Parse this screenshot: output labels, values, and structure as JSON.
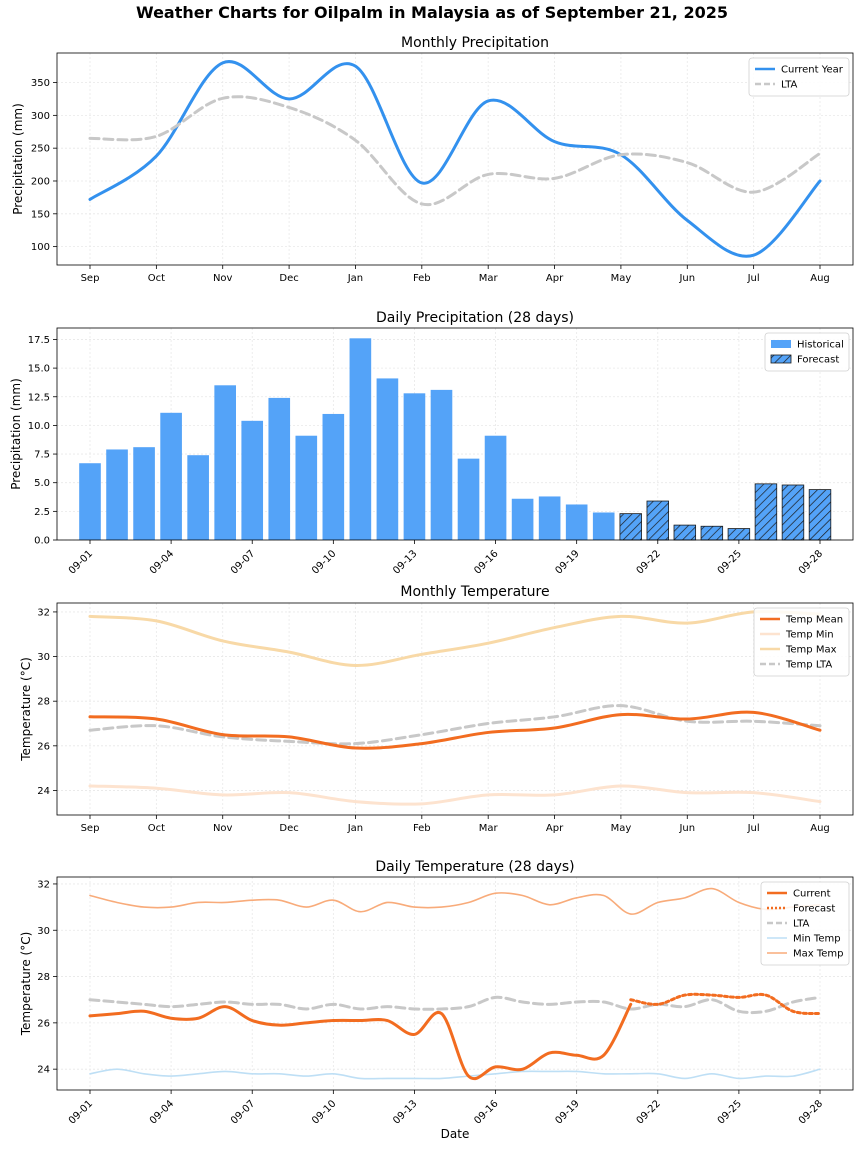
{
  "title": "Weather Charts for Oilpalm in Malaysia as of September 21, 2025",
  "colors": {
    "blue": "#3391ee",
    "lta": "#c8c8c8",
    "bar": "#54a3f8",
    "orange": "#f26c20",
    "tmin": "#fde3cf",
    "tmax": "#f8d9a7",
    "dmin": "#bedff5",
    "dmax": "#f8ab7a"
  },
  "chart_data": [
    {
      "type": "line",
      "title": "Monthly Precipitation",
      "ylabel": "Precipitation (mm)",
      "xlabel": "",
      "categories": [
        "Sep",
        "Oct",
        "Nov",
        "Dec",
        "Jan",
        "Feb",
        "Mar",
        "Apr",
        "May",
        "Jun",
        "Jul",
        "Aug"
      ],
      "yticks": [
        100,
        150,
        200,
        250,
        300,
        350
      ],
      "ylim": [
        72,
        395
      ],
      "grid": true,
      "legend_position": "top-right",
      "series": [
        {
          "name": "Current Year",
          "style": "solid",
          "color": "#3391ee",
          "values": [
            172,
            238,
            380,
            325,
            375,
            197,
            322,
            260,
            240,
            140,
            87,
            200
          ]
        },
        {
          "name": "LTA",
          "style": "dashed",
          "color": "#c8c8c8",
          "values": [
            265,
            268,
            326,
            312,
            262,
            165,
            210,
            204,
            240,
            228,
            183,
            242
          ]
        }
      ]
    },
    {
      "type": "bar",
      "title": "Daily Precipitation (28 days)",
      "ylabel": "Precipitation (mm)",
      "xlabel": "",
      "categories": [
        "09-01",
        "09-02",
        "09-03",
        "09-04",
        "09-05",
        "09-06",
        "09-07",
        "09-08",
        "09-09",
        "09-10",
        "09-11",
        "09-12",
        "09-13",
        "09-14",
        "09-15",
        "09-16",
        "09-17",
        "09-18",
        "09-19",
        "09-20",
        "09-21",
        "09-22",
        "09-23",
        "09-24",
        "09-25",
        "09-26",
        "09-27",
        "09-28"
      ],
      "xticks": [
        "09-01",
        "09-04",
        "09-07",
        "09-10",
        "09-13",
        "09-16",
        "09-19",
        "09-22",
        "09-25",
        "09-28"
      ],
      "yticks": [
        "0.0",
        "2.5",
        "5.0",
        "7.5",
        "10.0",
        "12.5",
        "15.0",
        "17.5"
      ],
      "ylim": [
        0,
        18.5
      ],
      "grid": true,
      "legend_position": "top-right",
      "series": [
        {
          "name": "Historical",
          "values": [
            6.7,
            7.9,
            8.1,
            11.1,
            7.4,
            13.5,
            10.4,
            12.4,
            9.1,
            11.0,
            17.6,
            14.1,
            12.8,
            13.1,
            7.1,
            9.1,
            3.6,
            3.8,
            3.1,
            2.4,
            null,
            null,
            null,
            null,
            null,
            null,
            null,
            null
          ]
        },
        {
          "name": "Forecast",
          "values": [
            null,
            null,
            null,
            null,
            null,
            null,
            null,
            null,
            null,
            null,
            null,
            null,
            null,
            null,
            null,
            null,
            null,
            null,
            null,
            null,
            2.3,
            3.4,
            1.3,
            1.2,
            1.0,
            4.9,
            4.8,
            4.4
          ]
        }
      ]
    },
    {
      "type": "line",
      "title": "Monthly Temperature",
      "ylabel": "Temperature (°C)",
      "xlabel": "",
      "categories": [
        "Sep",
        "Oct",
        "Nov",
        "Dec",
        "Jan",
        "Feb",
        "Mar",
        "Apr",
        "May",
        "Jun",
        "Jul",
        "Aug"
      ],
      "yticks": [
        24,
        26,
        28,
        30,
        32
      ],
      "ylim": [
        22.9,
        32.4
      ],
      "grid": true,
      "legend_position": "top-right",
      "series": [
        {
          "name": "Temp Mean",
          "style": "solid",
          "color": "#f26c20",
          "values": [
            27.3,
            27.2,
            26.5,
            26.4,
            25.9,
            26.1,
            26.6,
            26.8,
            27.4,
            27.2,
            27.5,
            26.7
          ]
        },
        {
          "name": "Temp Min",
          "style": "solid",
          "color": "#fde3cf",
          "values": [
            24.2,
            24.1,
            23.8,
            23.9,
            23.5,
            23.4,
            23.8,
            23.8,
            24.2,
            23.9,
            23.9,
            23.5
          ]
        },
        {
          "name": "Temp Max",
          "style": "solid",
          "color": "#f8d9a7",
          "values": [
            31.8,
            31.6,
            30.7,
            30.2,
            29.6,
            30.1,
            30.6,
            31.3,
            31.8,
            31.5,
            32.0,
            31.9
          ]
        },
        {
          "name": "Temp LTA",
          "style": "dashed",
          "color": "#c8c8c8",
          "values": [
            26.7,
            26.9,
            26.4,
            26.2,
            26.1,
            26.5,
            27.0,
            27.3,
            27.8,
            27.1,
            27.1,
            26.9
          ]
        }
      ]
    },
    {
      "type": "line",
      "title": "Daily Temperature (28 days)",
      "ylabel": "Temperature (°C)",
      "xlabel": "Date",
      "categories": [
        "09-01",
        "09-02",
        "09-03",
        "09-04",
        "09-05",
        "09-06",
        "09-07",
        "09-08",
        "09-09",
        "09-10",
        "09-11",
        "09-12",
        "09-13",
        "09-14",
        "09-15",
        "09-16",
        "09-17",
        "09-18",
        "09-19",
        "09-20",
        "09-21",
        "09-22",
        "09-23",
        "09-24",
        "09-25",
        "09-26",
        "09-27",
        "09-28"
      ],
      "xticks": [
        "09-01",
        "09-04",
        "09-07",
        "09-10",
        "09-13",
        "09-16",
        "09-19",
        "09-22",
        "09-25",
        "09-28"
      ],
      "yticks": [
        24,
        26,
        28,
        30,
        32
      ],
      "ylim": [
        23.1,
        32.3
      ],
      "grid": true,
      "legend_position": "top-right",
      "series": [
        {
          "name": "Current",
          "style": "solid",
          "color": "#f26c20",
          "values": [
            26.3,
            26.4,
            26.5,
            26.2,
            26.2,
            26.7,
            26.1,
            25.9,
            26.0,
            26.1,
            26.1,
            26.1,
            25.5,
            26.4,
            23.7,
            24.1,
            24.0,
            24.7,
            24.6,
            24.6,
            26.8,
            null,
            null,
            null,
            null,
            null,
            null,
            null
          ]
        },
        {
          "name": "Forecast",
          "style": "dotted",
          "color": "#f26c20",
          "values": [
            null,
            null,
            null,
            null,
            null,
            null,
            null,
            null,
            null,
            null,
            null,
            null,
            null,
            null,
            null,
            null,
            null,
            null,
            null,
            null,
            27.0,
            26.8,
            27.2,
            27.2,
            27.1,
            27.2,
            26.5,
            26.4
          ]
        },
        {
          "name": "LTA",
          "style": "dashed",
          "color": "#c8c8c8",
          "values": [
            27.0,
            26.9,
            26.8,
            26.7,
            26.8,
            26.9,
            26.8,
            26.8,
            26.6,
            26.8,
            26.6,
            26.7,
            26.6,
            26.6,
            26.7,
            27.1,
            26.9,
            26.8,
            26.9,
            26.9,
            26.6,
            26.8,
            26.7,
            27.0,
            26.5,
            26.5,
            26.9,
            27.1
          ]
        },
        {
          "name": "Min Temp",
          "style": "solid",
          "color": "#bedff5",
          "values": [
            23.8,
            24.0,
            23.8,
            23.7,
            23.8,
            23.9,
            23.8,
            23.8,
            23.7,
            23.8,
            23.6,
            23.6,
            23.6,
            23.6,
            23.7,
            23.8,
            23.9,
            23.9,
            23.9,
            23.8,
            23.8,
            23.8,
            23.6,
            23.8,
            23.6,
            23.7,
            23.7,
            24.0
          ]
        },
        {
          "name": "Max Temp",
          "style": "solid",
          "color": "#f8ab7a",
          "values": [
            31.5,
            31.2,
            31.0,
            31.0,
            31.2,
            31.2,
            31.3,
            31.3,
            31.0,
            31.3,
            30.8,
            31.2,
            31.0,
            31.0,
            31.2,
            31.6,
            31.5,
            31.1,
            31.4,
            31.5,
            30.7,
            31.2,
            31.4,
            31.8,
            31.2,
            30.9,
            31.0,
            31.1
          ]
        }
      ]
    }
  ]
}
